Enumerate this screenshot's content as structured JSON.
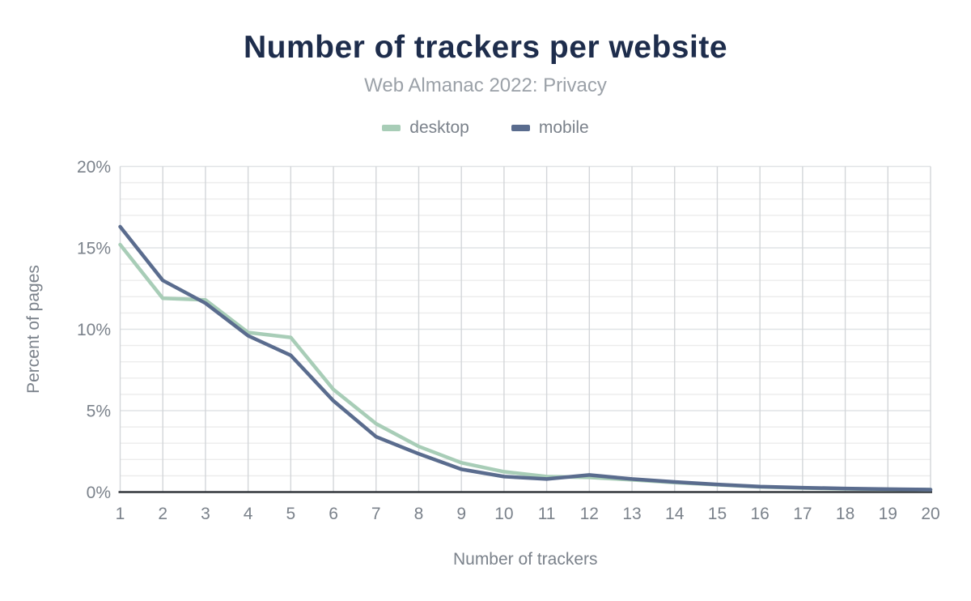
{
  "chart": {
    "title": "Number of trackers per website",
    "subtitle": "Web Almanac 2022: Privacy"
  },
  "colors": {
    "title": "#1e2d4c",
    "subtitle": "#9ba1a8",
    "tick_label": "#7b828b",
    "axis_title": "#7b828b",
    "grid_minor": "#ececec",
    "grid_major": "#e0e3e6",
    "grid_vertical": "#d3d6d9",
    "axis_line": "#32363c",
    "background": "#ffffff",
    "desktop": "#a8cdb7",
    "mobile": "#5a6c8e"
  },
  "chart_data": {
    "type": "line",
    "title": "Number of trackers per website",
    "subtitle": "Web Almanac 2022: Privacy",
    "xlabel": "Number of trackers",
    "ylabel": "Percent of pages",
    "xlim": [
      1,
      20
    ],
    "ylim": [
      0,
      20
    ],
    "grid": "horizontal minor every 1%, major every 5%, vertical line at every x value",
    "legend_position": "top",
    "x": [
      1,
      2,
      3,
      4,
      5,
      6,
      7,
      8,
      9,
      10,
      11,
      12,
      13,
      14,
      15,
      16,
      17,
      18,
      19,
      20
    ],
    "xtick_labels": [
      "1",
      "2",
      "3",
      "4",
      "5",
      "6",
      "7",
      "8",
      "9",
      "10",
      "11",
      "12",
      "13",
      "14",
      "15",
      "16",
      "17",
      "18",
      "19",
      "20"
    ],
    "yticks": [
      {
        "value": 0,
        "label": "0%"
      },
      {
        "value": 5,
        "label": "5%"
      },
      {
        "value": 10,
        "label": "10%"
      },
      {
        "value": 15,
        "label": "15%"
      },
      {
        "value": 20,
        "label": "20%"
      }
    ],
    "series": [
      {
        "name": "desktop",
        "color": "#a8cdb7",
        "values": [
          15.2,
          11.9,
          11.8,
          9.8,
          9.5,
          6.3,
          4.2,
          2.8,
          1.8,
          1.25,
          0.95,
          0.9,
          0.75,
          0.58,
          0.45,
          0.32,
          0.25,
          0.2,
          0.17,
          0.15
        ]
      },
      {
        "name": "mobile",
        "color": "#5a6c8e",
        "values": [
          16.3,
          13.0,
          11.6,
          9.6,
          8.4,
          5.6,
          3.4,
          2.35,
          1.4,
          0.95,
          0.8,
          1.05,
          0.8,
          0.62,
          0.47,
          0.34,
          0.27,
          0.22,
          0.18,
          0.15
        ]
      }
    ]
  }
}
